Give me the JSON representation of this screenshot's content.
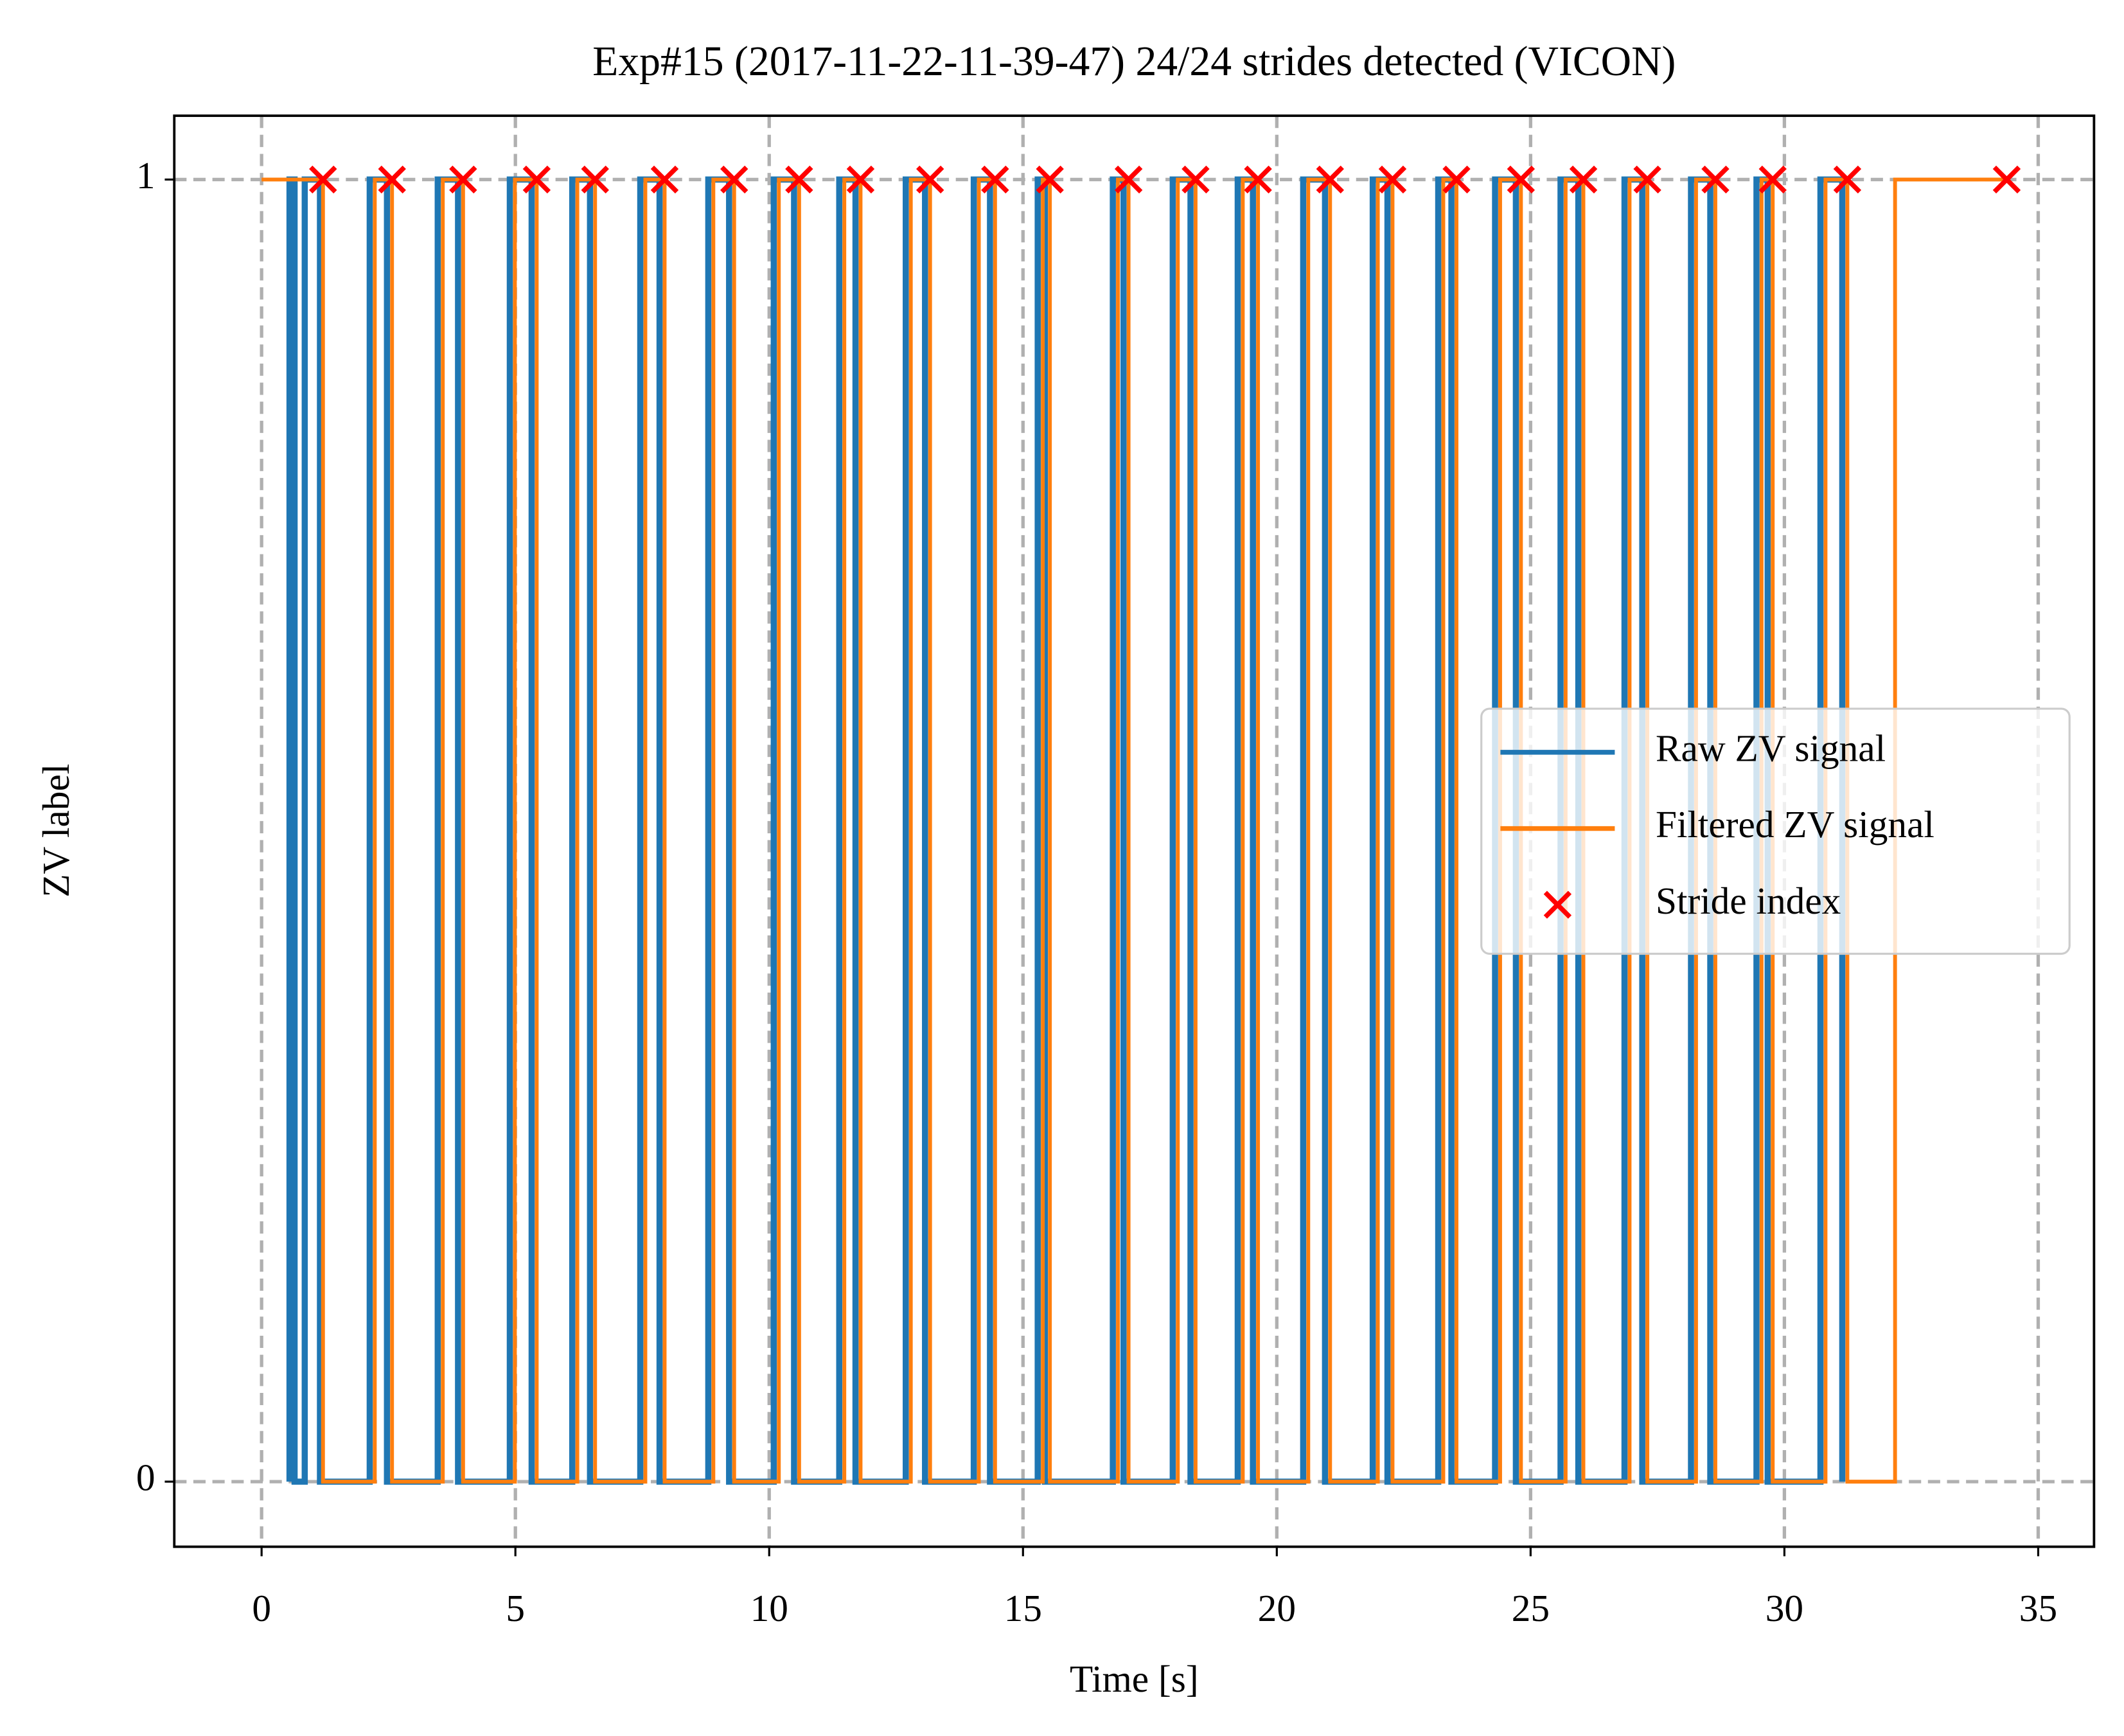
{
  "chart_data": {
    "type": "line",
    "title": "Exp#15 (2017-11-22-11-39-47) 24/24 strides detected (VICON)",
    "x_label": "Time [s]",
    "y_label": "ZV label",
    "xlim": [
      -1.72,
      36.1
    ],
    "ylim": [
      -0.05,
      1.049
    ],
    "xticks": [
      0,
      5,
      10,
      15,
      20,
      25,
      30,
      35
    ],
    "yticks": [
      0,
      1
    ],
    "grid": true,
    "legend": "center right",
    "series": [
      {
        "name": "Raw ZV signal",
        "type": "line",
        "color": "#1f77b4",
        "x": [
          0.55,
          0.55,
          0.65,
          0.65,
          0.85,
          0.85,
          1.15,
          1.15,
          2.13,
          2.13,
          2.47,
          2.47,
          3.47,
          3.47,
          3.87,
          3.87,
          4.89,
          4.89,
          5.32,
          5.32,
          6.12,
          6.12,
          6.47,
          6.47,
          7.46,
          7.46,
          7.84,
          7.84,
          8.8,
          8.8,
          9.21,
          9.21,
          10.09,
          10.09,
          10.49,
          10.49,
          11.38,
          11.38,
          11.7,
          11.7,
          12.69,
          12.69,
          13.07,
          13.07,
          14.03,
          14.03,
          14.35,
          14.35,
          15.29,
          15.29,
          15.43,
          15.43,
          16.77,
          16.77,
          16.98,
          16.98,
          17.95,
          17.95,
          18.3,
          18.3,
          19.23,
          19.23,
          19.53,
          19.53,
          20.52,
          20.52,
          20.95,
          20.95,
          21.89,
          21.89,
          22.18,
          22.18,
          23.18,
          23.18,
          23.44,
          23.44,
          24.3,
          24.3,
          24.71,
          24.71,
          25.59,
          25.59,
          25.94,
          25.94,
          26.85,
          26.85,
          27.2,
          27.2,
          28.16,
          28.16,
          28.54,
          28.54,
          29.45,
          29.45,
          29.67,
          29.67,
          30.71,
          30.71,
          31.14,
          31.14
        ],
        "values": [
          0,
          1,
          1,
          0,
          0,
          1,
          1,
          0,
          0,
          1,
          1,
          0,
          0,
          1,
          1,
          0,
          0,
          1,
          1,
          0,
          0,
          1,
          1,
          0,
          0,
          1,
          1,
          0,
          0,
          1,
          1,
          0,
          0,
          1,
          1,
          0,
          0,
          1,
          1,
          0,
          0,
          1,
          1,
          0,
          0,
          1,
          1,
          0,
          0,
          1,
          1,
          0,
          0,
          1,
          1,
          0,
          0,
          1,
          1,
          0,
          0,
          1,
          1,
          0,
          0,
          1,
          1,
          0,
          0,
          1,
          1,
          0,
          0,
          1,
          1,
          0,
          0,
          1,
          1,
          0,
          0,
          1,
          1,
          0,
          0,
          1,
          1,
          0,
          0,
          1,
          1,
          0,
          0,
          1,
          1,
          0,
          0,
          1,
          1,
          0
        ]
      },
      {
        "name": "Filtered ZV signal",
        "type": "line",
        "color": "#ff7f0e",
        "x": [
          0,
          1.21,
          1.21,
          2.23,
          2.23,
          2.57,
          2.57,
          3.57,
          3.57,
          3.97,
          3.97,
          4.99,
          4.99,
          5.42,
          5.42,
          6.22,
          6.22,
          6.57,
          6.57,
          7.56,
          7.56,
          7.94,
          7.94,
          8.9,
          8.9,
          9.31,
          9.31,
          10.19,
          10.19,
          10.59,
          10.59,
          11.48,
          11.48,
          11.8,
          11.8,
          12.79,
          12.79,
          13.17,
          13.17,
          14.13,
          14.13,
          14.45,
          14.45,
          15.39,
          15.39,
          15.53,
          15.53,
          16.87,
          16.87,
          17.08,
          17.08,
          18.05,
          18.05,
          18.4,
          18.4,
          19.33,
          19.33,
          19.63,
          19.63,
          20.62,
          20.62,
          21.05,
          21.05,
          21.99,
          21.99,
          22.28,
          22.28,
          23.28,
          23.28,
          23.54,
          23.54,
          24.4,
          24.4,
          24.81,
          24.81,
          25.69,
          25.69,
          26.04,
          26.04,
          26.95,
          26.95,
          27.3,
          27.3,
          28.26,
          28.26,
          28.64,
          28.64,
          29.55,
          29.55,
          29.77,
          29.77,
          30.81,
          30.81,
          31.24,
          31.24,
          32.18,
          32.18,
          34.38
        ],
        "values": [
          1,
          1,
          0,
          0,
          1,
          1,
          0,
          0,
          1,
          1,
          0,
          0,
          1,
          1,
          0,
          0,
          1,
          1,
          0,
          0,
          1,
          1,
          0,
          0,
          1,
          1,
          0,
          0,
          1,
          1,
          0,
          0,
          1,
          1,
          0,
          0,
          1,
          1,
          0,
          0,
          1,
          1,
          0,
          0,
          1,
          1,
          0,
          0,
          1,
          1,
          0,
          0,
          1,
          1,
          0,
          0,
          1,
          1,
          0,
          0,
          1,
          1,
          0,
          0,
          1,
          1,
          0,
          0,
          1,
          1,
          0,
          0,
          1,
          1,
          0,
          0,
          1,
          1,
          0,
          0,
          1,
          1,
          0,
          0,
          1,
          1,
          0,
          0,
          1,
          1,
          0,
          0,
          1,
          1,
          0,
          0,
          1,
          1
        ]
      },
      {
        "name": "Stride index",
        "type": "scatter",
        "color": "#ff0000",
        "x": [
          1.21,
          2.57,
          3.97,
          5.42,
          6.57,
          7.94,
          9.31,
          10.59,
          11.8,
          13.17,
          14.45,
          15.53,
          17.08,
          18.4,
          19.63,
          21.05,
          22.28,
          23.54,
          24.81,
          26.04,
          27.3,
          28.64,
          29.77,
          31.24,
          34.38
        ],
        "values": [
          1,
          1,
          1,
          1,
          1,
          1,
          1,
          1,
          1,
          1,
          1,
          1,
          1,
          1,
          1,
          1,
          1,
          1,
          1,
          1,
          1,
          1,
          1,
          1,
          1
        ]
      }
    ]
  }
}
